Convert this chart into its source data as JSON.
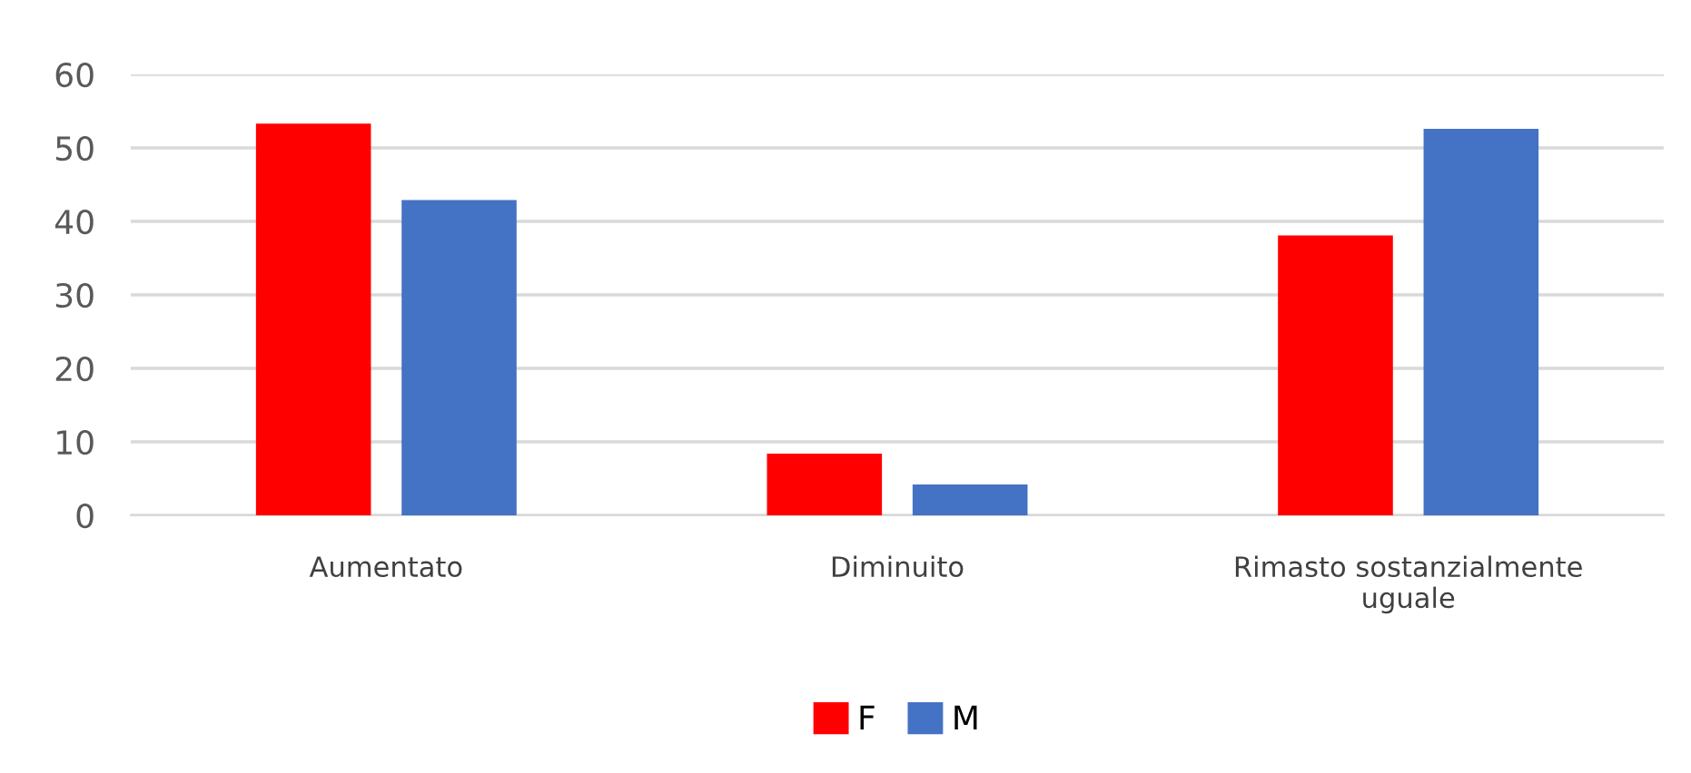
{
  "chart_data": {
    "type": "bar",
    "categories": [
      "Aumentato",
      "Diminuito",
      "Rimasto sostanzialmente\nuguale"
    ],
    "series": [
      {
        "name": "F",
        "color": "#ff0000",
        "values": [
          53.3,
          8.4,
          38.1
        ]
      },
      {
        "name": "M",
        "color": "#4472c4",
        "values": [
          42.9,
          4.2,
          52.6
        ]
      }
    ],
    "ylim": [
      0,
      60
    ],
    "yticks": [
      0,
      10,
      20,
      30,
      40,
      50,
      60
    ],
    "grid": "y",
    "legend": "bottom"
  }
}
